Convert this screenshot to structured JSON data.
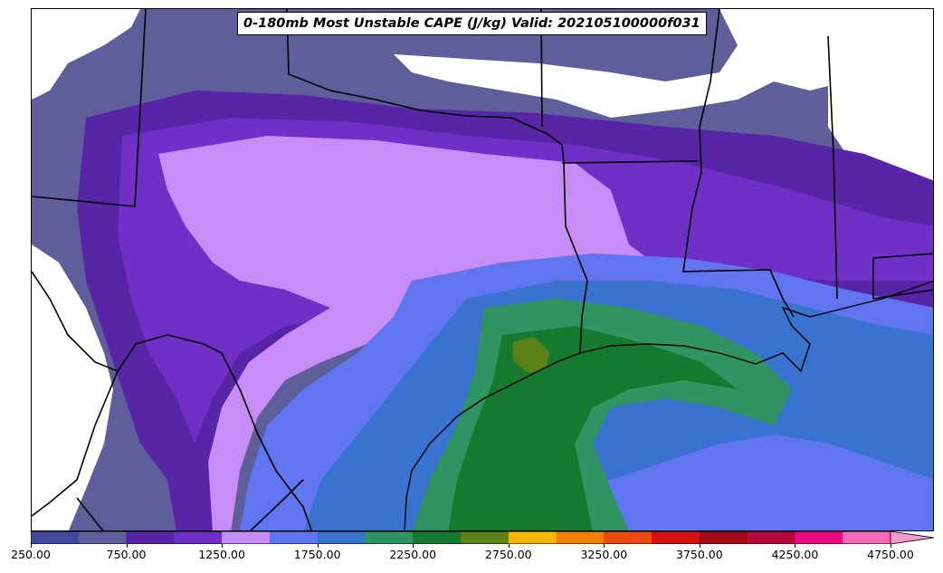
{
  "title": "0-180mb Most Unstable CAPE (J/kg) Valid: 202105100000f031",
  "colorbar": {
    "levels": [
      250,
      500,
      750,
      1000,
      1250,
      1500,
      1750,
      2000,
      2250,
      2500,
      2750,
      3000,
      3250,
      3500,
      3750,
      4000,
      4250,
      4500,
      4750
    ],
    "colors": [
      "#3d4a9e",
      "#5d5e9a",
      "#5825a6",
      "#7030c8",
      "#c78cf5",
      "#6275f0",
      "#3a72d0",
      "#2f9462",
      "#157a2e",
      "#5a8218",
      "#f5b800",
      "#f08000",
      "#e84a10",
      "#d41010",
      "#a00a14",
      "#b20a3c",
      "#ea0a82",
      "#f26ab8"
    ],
    "extend_color": "#f59ad2",
    "tick_labels": [
      "250.00",
      "750.00",
      "1250.00",
      "1750.00",
      "2250.00",
      "2750.00",
      "3250.00",
      "3750.00",
      "4250.00",
      "4750.00"
    ]
  }
}
